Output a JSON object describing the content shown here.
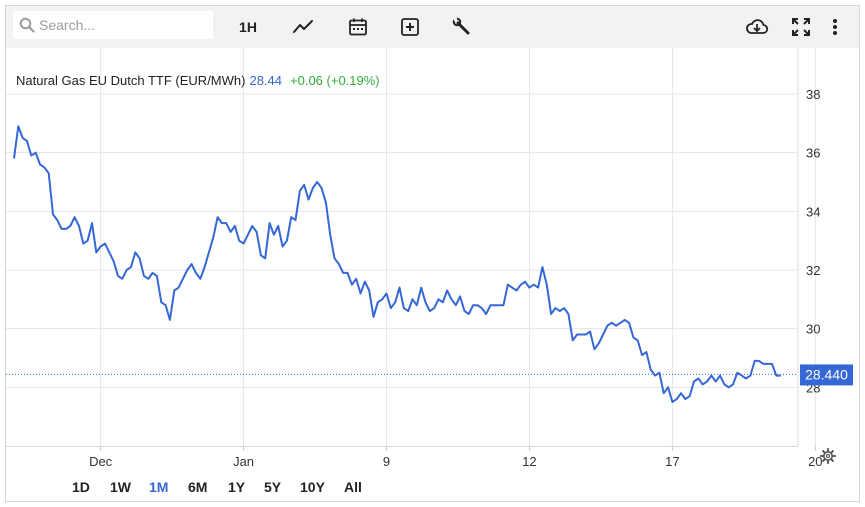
{
  "toolbar": {
    "search_placeholder": "Search...",
    "interval_label": "1H",
    "icons": [
      "search-icon",
      "line-chart-icon",
      "calendar-icon",
      "add-indicator-icon",
      "wrench-icon",
      "cloud-download-icon",
      "fullscreen-icon",
      "more-vertical-icon"
    ]
  },
  "legend": {
    "name": "Natural Gas EU Dutch TTF (EUR/MWh)",
    "price": "28.44",
    "change": "+0.06 (+0.19%)"
  },
  "price_label": "28.440",
  "ranges": [
    "1D",
    "1W",
    "1M",
    "6M",
    "1Y",
    "5Y",
    "10Y",
    "All"
  ],
  "active_range": "1M",
  "colors": {
    "line": "#3567d6",
    "up": "#2fae3a",
    "grid": "#e6e6e6",
    "price_tag": "#3567d6"
  },
  "chart_data": {
    "type": "line",
    "title": "Natural Gas EU Dutch TTF (EUR/MWh)",
    "xlabel": "",
    "ylabel": "",
    "ylim": [
      26.0,
      39.5
    ],
    "yticks": [
      28,
      30,
      32,
      34,
      36,
      38
    ],
    "xticks": [
      {
        "label": "Dec",
        "i": 20
      },
      {
        "label": "Jan",
        "i": 53
      },
      {
        "label": "9",
        "i": 86
      },
      {
        "label": "12",
        "i": 119
      },
      {
        "label": "17",
        "i": 152
      },
      {
        "label": "20",
        "i": 185
      }
    ],
    "last_value": 28.44,
    "grid": true,
    "series": [
      {
        "values": [
          35.8,
          36.9,
          36.5,
          36.4,
          35.9,
          36.0,
          35.6,
          35.5,
          35.3,
          33.9,
          33.7,
          33.4,
          33.4,
          33.5,
          33.8,
          33.5,
          32.9,
          33.0,
          33.6,
          32.6,
          32.8,
          32.9,
          32.6,
          32.3,
          31.8,
          31.7,
          32.0,
          32.1,
          32.6,
          32.4,
          31.8,
          31.7,
          31.9,
          31.8,
          30.9,
          30.8,
          30.3,
          31.3,
          31.4,
          31.7,
          32.0,
          32.2,
          31.9,
          31.7,
          32.1,
          32.6,
          33.1,
          33.8,
          33.6,
          33.6,
          33.3,
          33.5,
          33.0,
          32.9,
          33.2,
          33.5,
          33.3,
          32.5,
          32.4,
          33.6,
          33.2,
          33.5,
          32.8,
          33.0,
          33.8,
          33.7,
          34.7,
          34.9,
          34.4,
          34.8,
          35.0,
          34.8,
          34.3,
          33.2,
          32.4,
          32.2,
          31.9,
          31.9,
          31.5,
          31.7,
          31.2,
          31.6,
          31.3,
          30.4,
          30.9,
          31.0,
          31.2,
          30.7,
          30.9,
          31.4,
          30.7,
          30.6,
          31.0,
          30.8,
          31.4,
          30.9,
          30.6,
          30.7,
          31.0,
          30.9,
          31.3,
          31.0,
          30.8,
          31.1,
          30.6,
          30.5,
          30.8,
          30.8,
          30.7,
          30.5,
          30.8,
          30.8,
          30.8,
          30.8,
          31.5,
          31.4,
          31.3,
          31.5,
          31.6,
          31.4,
          31.5,
          31.4,
          32.1,
          31.5,
          30.5,
          30.7,
          30.6,
          30.7,
          30.5,
          29.6,
          29.8,
          29.8,
          29.8,
          29.9,
          29.3,
          29.5,
          29.8,
          30.1,
          30.2,
          30.1,
          30.2,
          30.3,
          30.2,
          29.7,
          29.6,
          29.1,
          29.2,
          28.6,
          28.4,
          28.5,
          27.8,
          28.0,
          27.5,
          27.6,
          27.8,
          27.6,
          27.7,
          28.2,
          28.3,
          28.1,
          28.2,
          28.4,
          28.2,
          28.4,
          28.1,
          28.0,
          28.1,
          28.5,
          28.4,
          28.3,
          28.4,
          28.9,
          28.9,
          28.8,
          28.8,
          28.8,
          28.4,
          28.4
        ]
      }
    ]
  }
}
